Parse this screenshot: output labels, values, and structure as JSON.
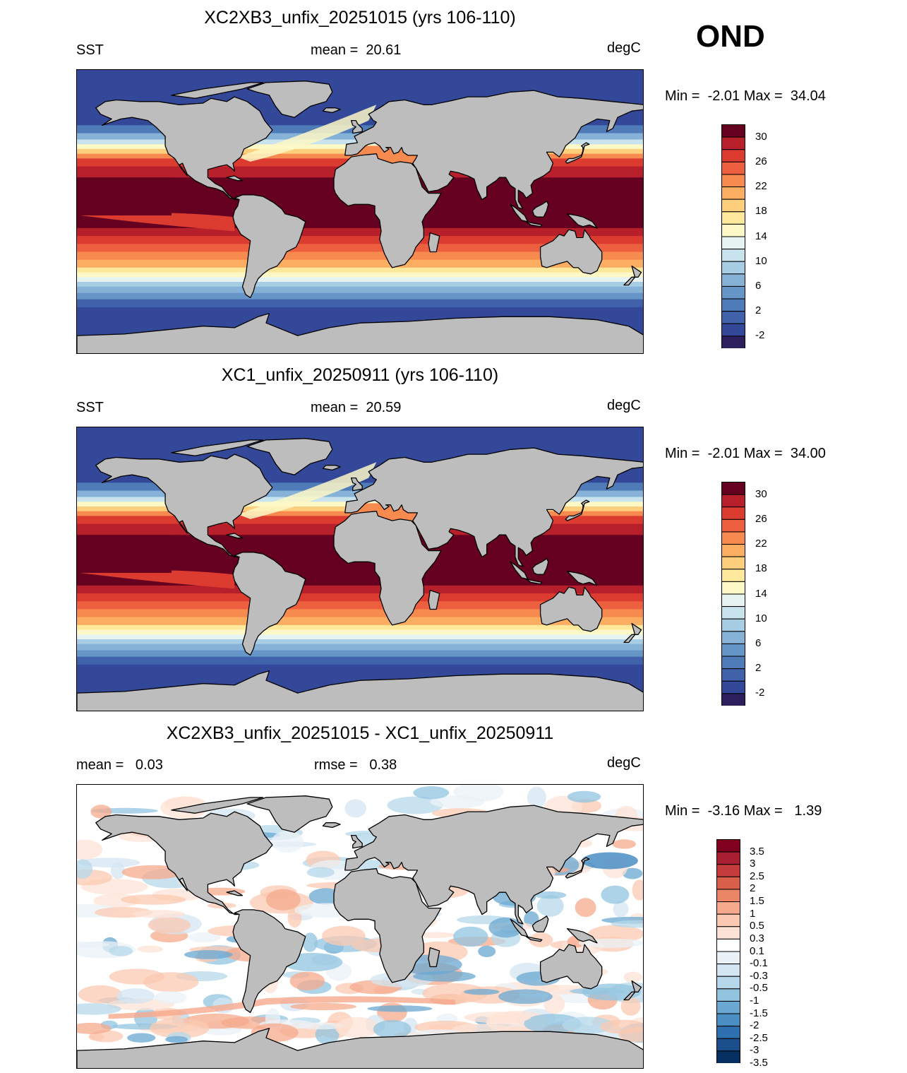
{
  "season": "OND",
  "colors": {
    "land": "#bdbdbd",
    "coast": "#000000",
    "sst_scale": [
      "#2c1f5e",
      "#34489a",
      "#3f62ab",
      "#4f7cb8",
      "#6696c7",
      "#86b2d7",
      "#a6cde4",
      "#c8e3ee",
      "#e7f3f0",
      "#fdf8c6",
      "#fde89b",
      "#fdcf7c",
      "#fbae62",
      "#f78a4e",
      "#ec6040",
      "#dc3b30",
      "#b7202b",
      "#650021"
    ],
    "diff_scale": [
      "#053061",
      "#1a4f8c",
      "#2d6faf",
      "#4a8ec4",
      "#6aa8d2",
      "#92c4e0",
      "#b7d8ea",
      "#d4e6f1",
      "#ebf2f7",
      "#ffffff",
      "#fde3d6",
      "#fbc9b2",
      "#f6a98c",
      "#ea8566",
      "#d9614c",
      "#c43b3b",
      "#a81f32",
      "#82001f"
    ]
  },
  "panels": [
    {
      "title": "XC2XB3_unfix_20251015 (yrs 106-110)",
      "left_label": "SST",
      "center_label": "mean =  20.61",
      "right_label": "degC",
      "minmax": "Min =  -2.01 Max =  34.04",
      "colorbar": [
        "30",
        "26",
        "22",
        "18",
        "14",
        "10",
        "6",
        "2",
        "-2"
      ]
    },
    {
      "title": "XC1_unfix_20250911 (yrs 106-110)",
      "left_label": "SST",
      "center_label": "mean =  20.59",
      "right_label": "degC",
      "minmax": "Min =  -2.01 Max =  34.00",
      "colorbar": [
        "30",
        "26",
        "22",
        "18",
        "14",
        "10",
        "6",
        "2",
        "-2"
      ]
    },
    {
      "title": "XC2XB3_unfix_20251015 - XC1_unfix_20250911",
      "left_label": "mean =   0.03",
      "center_label": "rmse =   0.38",
      "right_label": "degC",
      "minmax": "Min =  -3.16 Max =   1.39",
      "colorbar": [
        "3.5",
        "3",
        "2.5",
        "2",
        "1.5",
        "1",
        "0.5",
        "0.3",
        "0.1",
        "-0.1",
        "-0.3",
        "-0.5",
        "-1",
        "-1.5",
        "-2",
        "-2.5",
        "-3",
        "-3.5"
      ]
    }
  ]
}
